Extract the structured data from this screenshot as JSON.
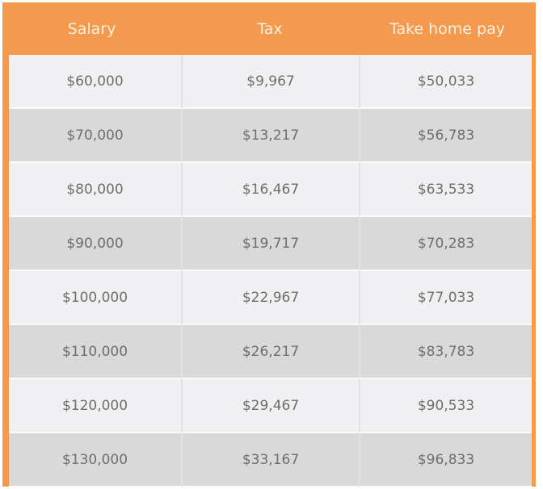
{
  "colors": {
    "header": "#f39a4f",
    "row_light": "#f0f0f2",
    "row_dark": "#d9d9d9"
  },
  "table": {
    "headers": [
      "Salary",
      "Tax",
      "Take home pay"
    ],
    "rows": [
      [
        "$60,000",
        "$9,967",
        "$50,033"
      ],
      [
        "$70,000",
        "$13,217",
        "$56,783"
      ],
      [
        "$80,000",
        "$16,467",
        "$63,533"
      ],
      [
        "$90,000",
        "$19,717",
        "$70,283"
      ],
      [
        "$100,000",
        "$22,967",
        "$77,033"
      ],
      [
        "$110,000",
        "$26,217",
        "$83,783"
      ],
      [
        "$120,000",
        "$29,467",
        "$90,533"
      ],
      [
        "$130,000",
        "$33,167",
        "$96,833"
      ]
    ]
  }
}
